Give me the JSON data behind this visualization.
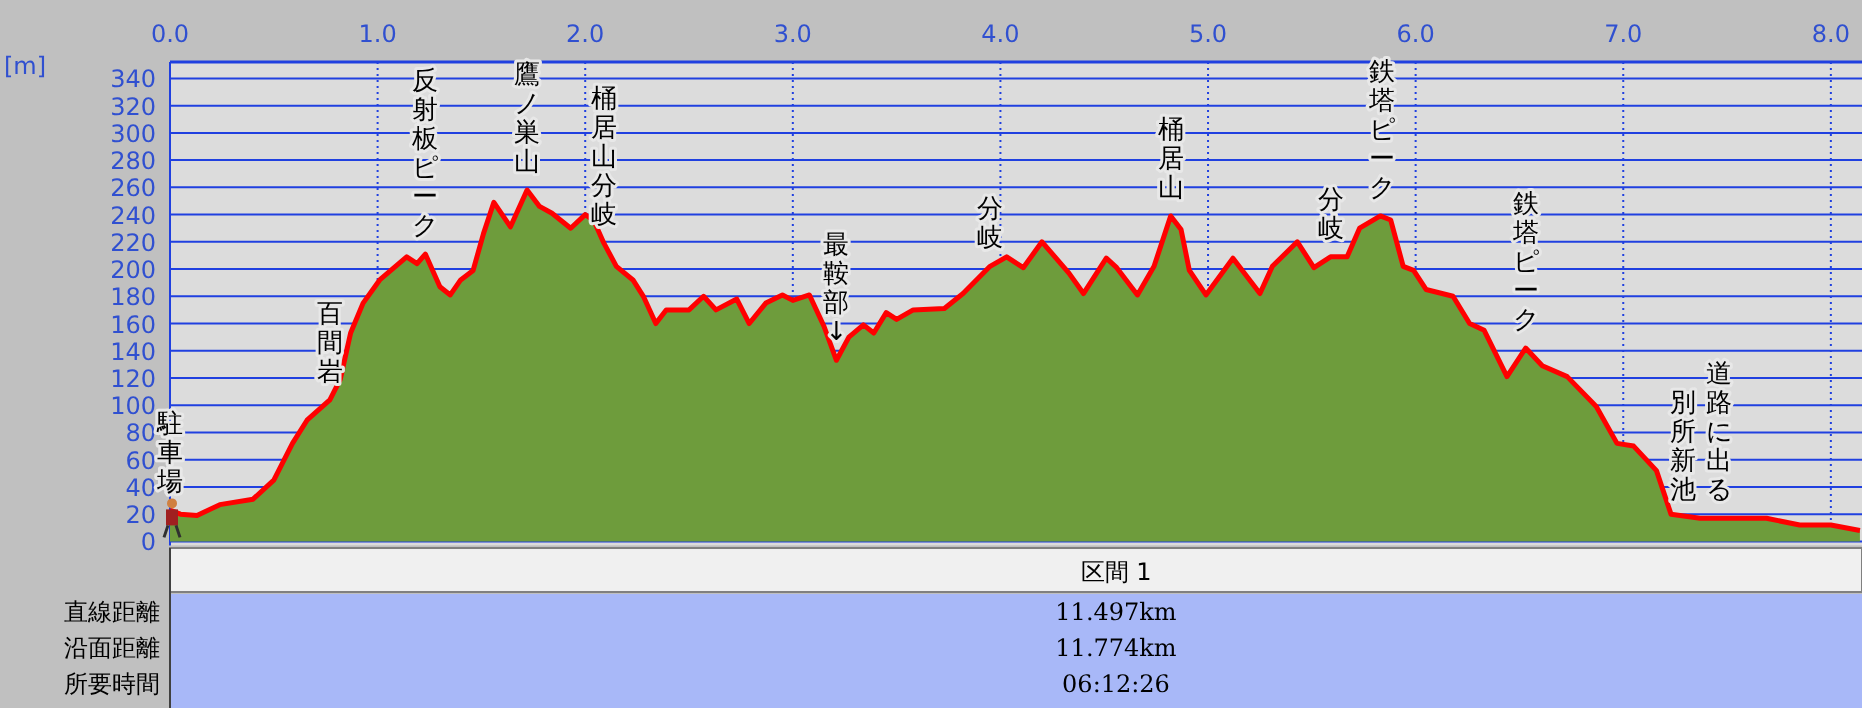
{
  "chart_data": {
    "type": "area",
    "ylabel": "[m]",
    "xlim": [
      0,
      8.15
    ],
    "ylim": [
      0,
      350
    ],
    "xticks": [
      {
        "value": 0,
        "label": "0.0"
      },
      {
        "value": 1,
        "label": "1.0"
      },
      {
        "value": 2,
        "label": "2.0"
      },
      {
        "value": 3,
        "label": "3.0"
      },
      {
        "value": 4,
        "label": "4.0"
      },
      {
        "value": 5,
        "label": "5.0"
      },
      {
        "value": 6,
        "label": "6.0"
      },
      {
        "value": 7,
        "label": "7.0"
      },
      {
        "value": 8,
        "label": "8.0"
      }
    ],
    "yticks": [
      0,
      20,
      40,
      60,
      80,
      100,
      120,
      140,
      160,
      180,
      200,
      220,
      240,
      260,
      280,
      300,
      320,
      340
    ],
    "grid": true,
    "series": [
      {
        "color": "#6e9c3c",
        "x": [
          0,
          0.05,
          0.13,
          0.24,
          0.4,
          0.5,
          0.59,
          0.66,
          0.77,
          0.82,
          0.87,
          0.93,
          1.01,
          1.14,
          1.19,
          1.23,
          1.3,
          1.35,
          1.4,
          1.46,
          1.51,
          1.56,
          1.64,
          1.72,
          1.78,
          1.84,
          1.93,
          2.0,
          2.04,
          2.09,
          2.15,
          2.23,
          2.28,
          2.34,
          2.39,
          2.5,
          2.57,
          2.63,
          2.73,
          2.79,
          2.87,
          2.95,
          3.0,
          3.08,
          3.15,
          3.21,
          3.27,
          3.34,
          3.39,
          3.45,
          3.5,
          3.58,
          3.73,
          3.82,
          3.95,
          4.03,
          4.11,
          4.2,
          4.33,
          4.4,
          4.51,
          4.56,
          4.66,
          4.74,
          4.82,
          4.87,
          4.91,
          4.99,
          5.12,
          5.25,
          5.31,
          5.43,
          5.51,
          5.59,
          5.67,
          5.73,
          5.83,
          5.88,
          5.94,
          5.99,
          6.05,
          6.18,
          6.26,
          6.33,
          6.44,
          6.53,
          6.61,
          6.73,
          6.87,
          6.97,
          7.05,
          7.16,
          7.23,
          7.37,
          7.69,
          7.85,
          8.0,
          8.14
        ],
        "values": [
          23,
          20,
          19,
          27,
          31,
          45,
          72,
          89,
          104,
          119,
          153,
          175,
          192,
          209,
          204,
          211,
          187,
          181,
          192,
          199,
          226,
          249,
          231,
          258,
          246,
          241,
          230,
          240,
          236,
          219,
          202,
          192,
          180,
          160,
          170,
          170,
          180,
          170,
          178,
          160,
          175,
          181,
          177,
          181,
          158,
          133,
          150,
          159,
          153,
          168,
          163,
          170,
          171,
          182,
          202,
          209,
          201,
          220,
          197,
          182,
          208,
          201,
          181,
          202,
          239,
          229,
          199,
          181,
          208,
          182,
          202,
          220,
          201,
          209,
          209,
          230,
          239,
          236,
          202,
          199,
          185,
          180,
          160,
          155,
          121,
          142,
          129,
          121,
          99,
          72,
          70,
          52,
          20,
          17,
          17,
          12,
          12,
          8
        ]
      },
      {
        "type": "line",
        "color": "#ff0000",
        "x": [
          0,
          0.05,
          0.13,
          0.24,
          0.4,
          0.5,
          0.59,
          0.66,
          0.77,
          0.82,
          0.87,
          0.93,
          1.01,
          1.14,
          1.19,
          1.23,
          1.3,
          1.35,
          1.4,
          1.46,
          1.51,
          1.56,
          1.64,
          1.72,
          1.78,
          1.84,
          1.93,
          2.0,
          2.04,
          2.09,
          2.15,
          2.23,
          2.28,
          2.34,
          2.39,
          2.5,
          2.57,
          2.63,
          2.73,
          2.79,
          2.87,
          2.95,
          3.0,
          3.08,
          3.15,
          3.21,
          3.27,
          3.34,
          3.39,
          3.45,
          3.5,
          3.58,
          3.73,
          3.82,
          3.95,
          4.03,
          4.11,
          4.2,
          4.33,
          4.4,
          4.51,
          4.56,
          4.66,
          4.74,
          4.82,
          4.87,
          4.91,
          4.99,
          5.12,
          5.25,
          5.31,
          5.43,
          5.51,
          5.59,
          5.67,
          5.73,
          5.83,
          5.88,
          5.94,
          5.99,
          6.05,
          6.18,
          6.26,
          6.33,
          6.44,
          6.53,
          6.61,
          6.73,
          6.87,
          6.97,
          7.05,
          7.16,
          7.23,
          7.37,
          7.69,
          7.85,
          8.0,
          8.14
        ],
        "values": [
          23,
          20,
          19,
          27,
          31,
          45,
          72,
          89,
          104,
          119,
          153,
          175,
          192,
          209,
          204,
          211,
          187,
          181,
          192,
          199,
          226,
          249,
          231,
          258,
          246,
          241,
          230,
          240,
          236,
          219,
          202,
          192,
          180,
          160,
          170,
          170,
          180,
          170,
          178,
          160,
          175,
          181,
          177,
          181,
          158,
          133,
          150,
          159,
          153,
          168,
          163,
          170,
          171,
          182,
          202,
          209,
          201,
          220,
          197,
          182,
          208,
          201,
          181,
          202,
          239,
          229,
          199,
          181,
          208,
          182,
          202,
          220,
          201,
          209,
          209,
          230,
          239,
          236,
          202,
          199,
          185,
          180,
          160,
          155,
          121,
          142,
          129,
          121,
          99,
          72,
          70,
          52,
          20,
          17,
          17,
          12,
          12,
          8
        ]
      }
    ],
    "annotations": [
      {
        "text": "駐車場",
        "x": 0,
        "y": 23
      },
      {
        "text": "百間岩",
        "x": 0.77,
        "y": 104
      },
      {
        "text": "反射板ピーク",
        "x": 1.23,
        "y": 211
      },
      {
        "text": "鷹ノ巣山",
        "x": 1.72,
        "y": 258
      },
      {
        "text": "桶居山分岐",
        "x": 2.09,
        "y": 219
      },
      {
        "text": "最鞍部↓",
        "x": 3.21,
        "y": 133
      },
      {
        "text": "分岐",
        "x": 3.95,
        "y": 202
      },
      {
        "text": "桶居山",
        "x": 4.82,
        "y": 239
      },
      {
        "text": "分岐",
        "x": 5.59,
        "y": 209
      },
      {
        "text": "鉄塔ピーク",
        "x": 5.84,
        "y": 239
      },
      {
        "text": "鉄塔ピーク",
        "x": 6.53,
        "y": 142
      },
      {
        "text": "別所新池",
        "x": 7.29,
        "y": 17
      },
      {
        "text": "道路に出る",
        "x": 7.46,
        "y": 17
      },
      "区間 1",
      "直線距離",
      "11.497km",
      "沿面距離",
      "11.774km",
      "所要時間",
      "06:12:26"
    ]
  }
}
